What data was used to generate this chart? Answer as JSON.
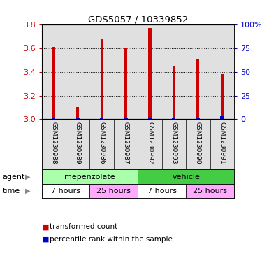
{
  "title": "GDS5057 / 10339852",
  "samples": [
    "GSM1230988",
    "GSM1230989",
    "GSM1230986",
    "GSM1230987",
    "GSM1230992",
    "GSM1230993",
    "GSM1230990",
    "GSM1230991"
  ],
  "transformed_counts": [
    3.61,
    3.1,
    3.68,
    3.6,
    3.77,
    3.45,
    3.51,
    3.38
  ],
  "percentile_ranks": [
    2.0,
    2.0,
    2.0,
    2.0,
    2.0,
    2.0,
    2.0,
    3.5
  ],
  "bar_bottom": 3.0,
  "ylim": [
    3.0,
    3.8
  ],
  "y_ticks": [
    3.0,
    3.2,
    3.4,
    3.6,
    3.8
  ],
  "y_right_ticks": [
    0,
    25,
    50,
    75,
    100
  ],
  "y_right_labels": [
    "0",
    "25",
    "50",
    "75",
    "100%"
  ],
  "bar_color_red": "#cc0000",
  "bar_color_blue": "#0000cc",
  "agent_groups": [
    {
      "label": "mepenzolate",
      "start": 0,
      "end": 4,
      "color": "#aaffaa"
    },
    {
      "label": "vehicle",
      "start": 4,
      "end": 8,
      "color": "#44cc44"
    }
  ],
  "time_groups": [
    {
      "label": "7 hours",
      "start": 0,
      "end": 2,
      "color": "#ffffff"
    },
    {
      "label": "25 hours",
      "start": 2,
      "end": 4,
      "color": "#ffaaff"
    },
    {
      "label": "7 hours",
      "start": 4,
      "end": 6,
      "color": "#ffffff"
    },
    {
      "label": "25 hours",
      "start": 6,
      "end": 8,
      "color": "#ffaaff"
    }
  ],
  "legend_red_label": "transformed count",
  "legend_blue_label": "percentile rank within the sample",
  "axis_label_color_left": "#cc0000",
  "axis_label_color_right": "#0000cc",
  "bar_width": 0.12,
  "plot_bg_color": "#e0e0e0",
  "pct_scale": 0.008
}
